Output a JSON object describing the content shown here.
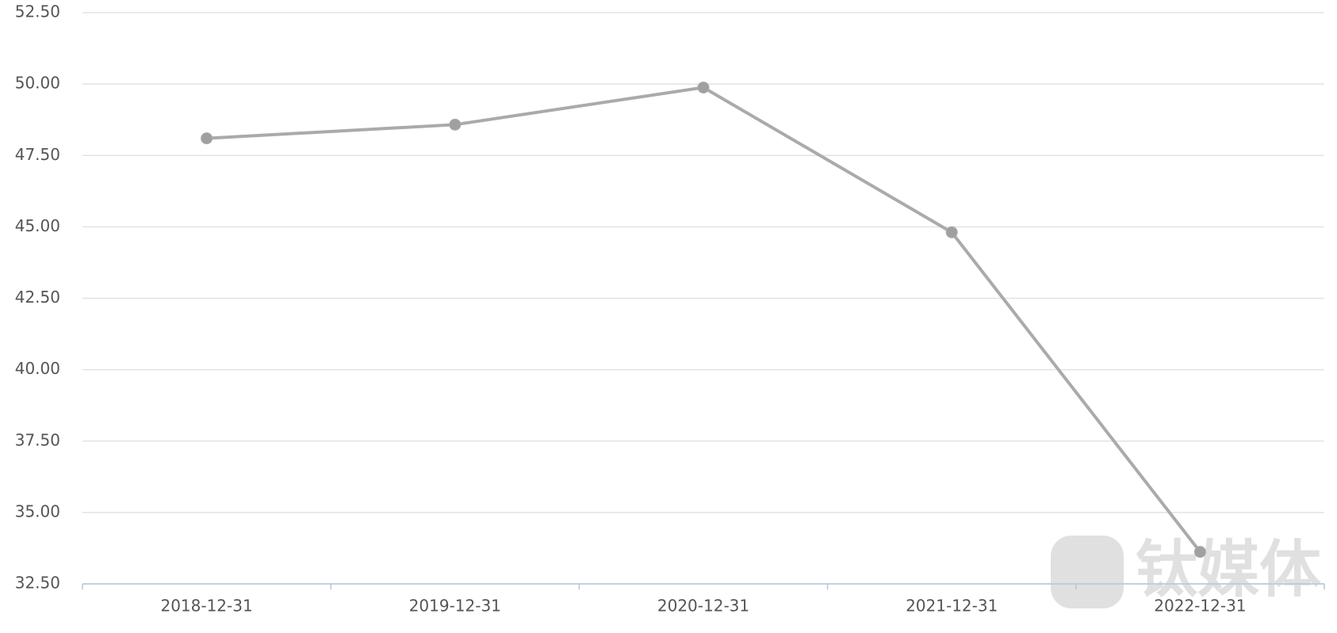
{
  "chart_data": {
    "type": "line",
    "categories": [
      "2018-12-31",
      "2019-12-31",
      "2020-12-31",
      "2021-12-31",
      "2022-12-31"
    ],
    "series": [
      {
        "name": null,
        "color": "#aaaaaa",
        "values": [
          48.1,
          48.58,
          49.88,
          44.81,
          33.62
        ]
      }
    ],
    "ylim": [
      32.5,
      52.5
    ],
    "yticks": [
      {
        "value": 32.5,
        "label": "32.50"
      },
      {
        "value": 35,
        "label": "35.00"
      },
      {
        "value": 37.5,
        "label": "37.50"
      },
      {
        "value": 40,
        "label": "40.00"
      },
      {
        "value": 42.5,
        "label": "42.50"
      },
      {
        "value": 45,
        "label": "45.00"
      },
      {
        "value": 47.5,
        "label": "47.50"
      },
      {
        "value": 50,
        "label": "50.00"
      },
      {
        "value": 52.5,
        "label": "52.50"
      }
    ],
    "grid": true,
    "watermark": "钛媒体"
  }
}
